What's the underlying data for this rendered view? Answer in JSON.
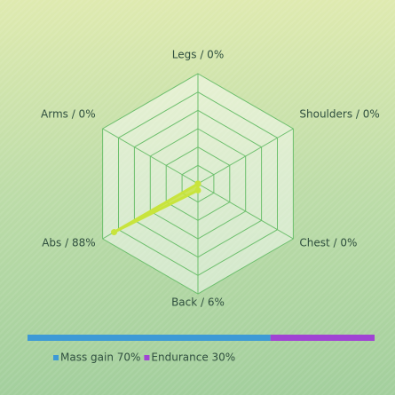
{
  "chart_data": [
    {
      "type": "radar",
      "categories": [
        "Legs / 0%",
        "Shoulders / 0%",
        "Chest / 0%",
        "Back / 6%",
        "Abs / 88%",
        "Arms / 0%"
      ],
      "values": [
        0,
        0,
        0,
        6,
        88,
        0
      ],
      "rlim": [
        0,
        100
      ],
      "color": "#c8e43c"
    },
    {
      "type": "stacked-bar",
      "xlim": [
        0,
        100
      ],
      "series": [
        {
          "name": "Mass gain 70%",
          "color": "#3d9ad6",
          "values": [
            70
          ]
        },
        {
          "name": "Endurance 30%",
          "color": "#a044d4",
          "values": [
            30
          ]
        }
      ]
    }
  ]
}
